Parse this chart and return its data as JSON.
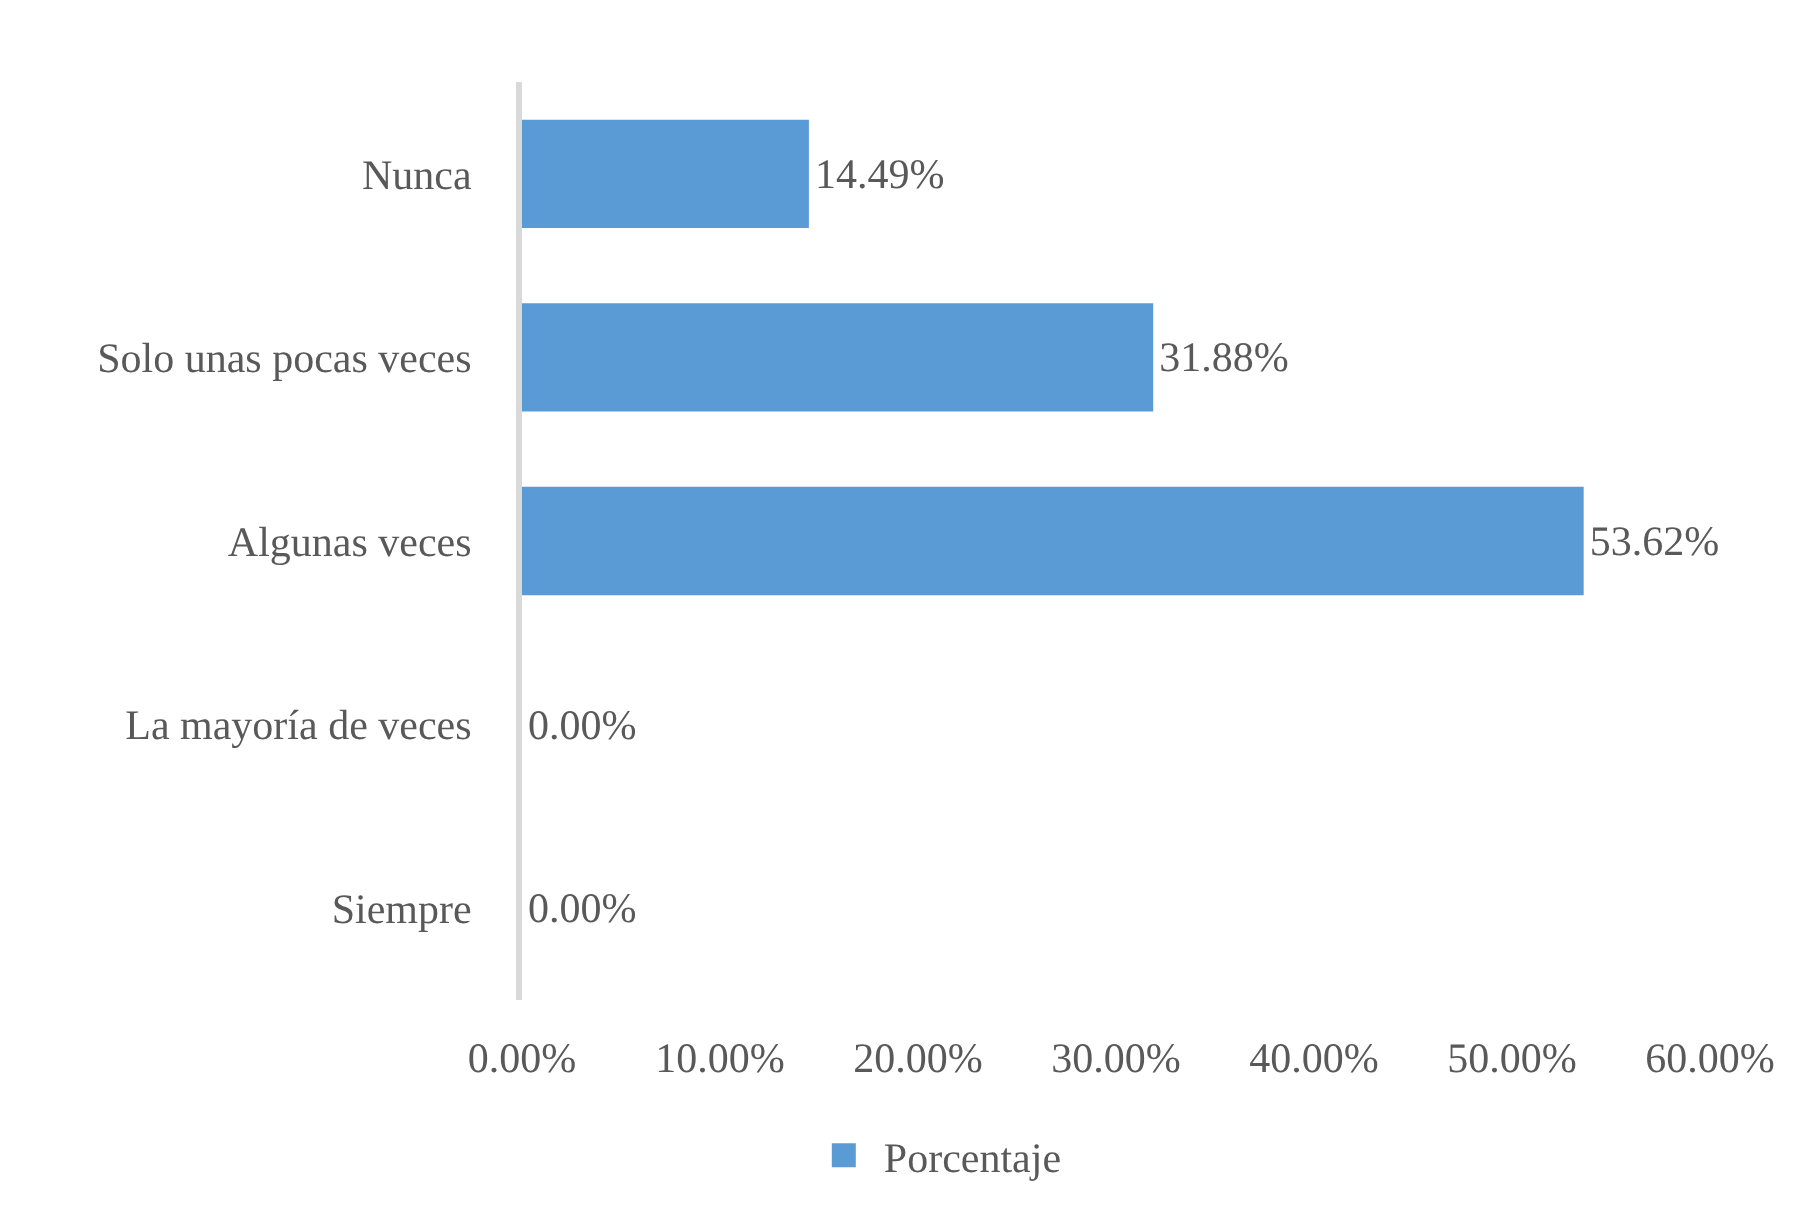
{
  "chart_data": {
    "type": "bar",
    "orientation": "horizontal",
    "categories": [
      "Nunca",
      "Solo unas pocas veces",
      "Algunas veces",
      "La mayoría de veces",
      "Siempre"
    ],
    "series": [
      {
        "name": "Porcentaje",
        "color": "#5b9bd5",
        "values": [
          14.49,
          31.88,
          53.62,
          0,
          0
        ],
        "value_labels": [
          "14.49%",
          "31.88%",
          "53.62%",
          "0.00%",
          "0.00%"
        ]
      }
    ],
    "xlim": [
      0,
      60
    ],
    "xticks": [
      {
        "value": 0,
        "label": "0.00%"
      },
      {
        "value": 10,
        "label": "10.00%"
      },
      {
        "value": 20,
        "label": "20.00%"
      },
      {
        "value": 30,
        "label": "30.00%"
      },
      {
        "value": 40,
        "label": "40.00%"
      },
      {
        "value": 50,
        "label": "50.00%"
      },
      {
        "value": 60,
        "label": "60.00%"
      }
    ],
    "legend": "bottom"
  }
}
